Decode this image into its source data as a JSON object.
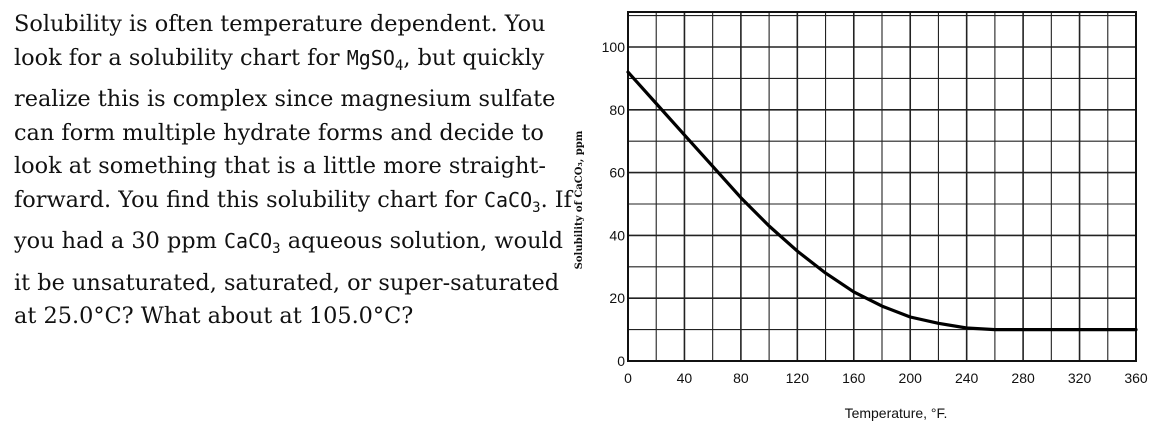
{
  "question": {
    "p1": "Solubility is often temperature dependent. You look for a solubility chart for ",
    "f1_main": "MgSO",
    "f1_sub": "4",
    "p2": ", but quickly realize this is complex since magnesium sulfate can form multiple hydrate forms and decide to look at something that is a little more straight-forward. You find this solubility chart for ",
    "f2_main": "CaCO",
    "f2_sub": "3",
    "p3": ". If you had a 30 ppm ",
    "f3_main": "CaCO",
    "f3_sub": "3",
    "p4": " aqueous solution, would it be unsaturated, saturated, or super-saturated at 25.0°C? What about at 105.0°C?"
  },
  "chart_data": {
    "type": "line",
    "title": "",
    "xlabel": "Temperature, °F.",
    "ylabel": "Solubility of CaCO₃, ppm",
    "xlim": [
      0,
      360
    ],
    "ylim": [
      0,
      100
    ],
    "x_ticks": [
      "0",
      "40",
      "80",
      "120",
      "160",
      "200",
      "240",
      "280",
      "320",
      "360"
    ],
    "y_ticks": [
      "0",
      "20",
      "40",
      "60",
      "80",
      "100"
    ],
    "grid": true,
    "series": [
      {
        "name": "",
        "x": [
          0,
          20,
          40,
          60,
          80,
          100,
          120,
          140,
          160,
          180,
          200,
          220,
          240,
          260,
          280,
          300,
          320,
          340,
          360
        ],
        "y": [
          92,
          82,
          72,
          62,
          52,
          43,
          35,
          28,
          22,
          17.5,
          14,
          12,
          10.5,
          10,
          10,
          10,
          10,
          10,
          10
        ]
      }
    ]
  }
}
